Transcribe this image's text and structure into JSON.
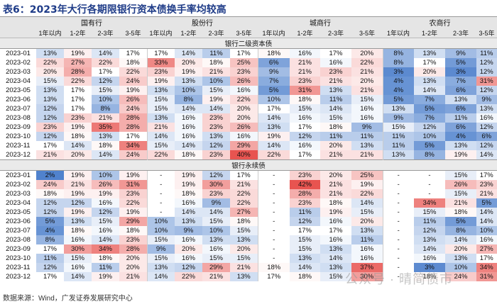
{
  "title": "表6：2023年大行各期限银行资本债换手率均较高",
  "groups": [
    "国有行",
    "股份行",
    "城商行",
    "农商行"
  ],
  "terms": [
    "1年以内",
    "1-2年",
    "2-3年",
    "3-5年"
  ],
  "sections": [
    {
      "label": "银行二级资本债",
      "rows": [
        {
          "date": "2023-01",
          "values": [
            "13%",
            "19%",
            "14%",
            "17%",
            "17%",
            "14%",
            "11%",
            "17%",
            "18%",
            "16%",
            "17%",
            "20%",
            "8%",
            "13%",
            "9%",
            "11%"
          ]
        },
        {
          "date": "2023-02",
          "values": [
            "22%",
            "27%",
            "22%",
            "18%",
            "33%",
            "20%",
            "18%",
            "25%",
            "6%",
            "21%",
            "16%",
            "22%",
            "8%",
            "17%",
            "5%",
            "12%"
          ]
        },
        {
          "date": "2023-03",
          "values": [
            "20%",
            "28%",
            "17%",
            "22%",
            "23%",
            "19%",
            "21%",
            "23%",
            "9%",
            "21%",
            "23%",
            "21%",
            "3%",
            "20%",
            "3%",
            "12%"
          ]
        },
        {
          "date": "2023-04",
          "values": [
            "15%",
            "22%",
            "12%",
            "24%",
            "19%",
            "13%",
            "10%",
            "26%",
            "7%",
            "23%",
            "21%",
            "20%",
            "4%",
            "13%",
            "7%",
            "31%"
          ]
        },
        {
          "date": "2023-05",
          "values": [
            "13%",
            "17%",
            "15%",
            "19%",
            "13%",
            "10%",
            "15%",
            "16%",
            "5%",
            "31%",
            "13%",
            "21%",
            "4%",
            "14%",
            "6%",
            "12%"
          ]
        },
        {
          "date": "2023-06",
          "values": [
            "13%",
            "17%",
            "10%",
            "26%",
            "15%",
            "8%",
            "19%",
            "22%",
            "10%",
            "18%",
            "11%",
            "15%",
            "5%",
            "7%",
            "13%",
            "9%"
          ]
        },
        {
          "date": "2023-07",
          "values": [
            "12%",
            "17%",
            "8%",
            "24%",
            "15%",
            "14%",
            "14%",
            "20%",
            "17%",
            "15%",
            "14%",
            "16%",
            "13%",
            "5%",
            "6%",
            "13%"
          ]
        },
        {
          "date": "2023-08",
          "values": [
            "12%",
            "23%",
            "21%",
            "28%",
            "13%",
            "16%",
            "23%",
            "20%",
            "14%",
            "16%",
            "15%",
            "16%",
            "9%",
            "7%",
            "11%",
            "16%"
          ]
        },
        {
          "date": "2023-09",
          "values": [
            "23%",
            "19%",
            "35%",
            "28%",
            "21%",
            "16%",
            "23%",
            "26%",
            "13%",
            "17%",
            "18%",
            "9%",
            "15%",
            "12%",
            "6%",
            "12%"
          ]
        },
        {
          "date": "2023-10",
          "values": [
            "12%",
            "18%",
            "13%",
            "17%",
            "14%",
            "16%",
            "13%",
            "16%",
            "19%",
            "12%",
            "11%",
            "11%",
            "11%",
            "10%",
            "4%",
            "6%"
          ]
        },
        {
          "date": "2023-11",
          "values": [
            "17%",
            "14%",
            "18%",
            "34%",
            "15%",
            "14%",
            "12%",
            "29%",
            "14%",
            "16%",
            "20%",
            "13%",
            "11%",
            "5%",
            "13%",
            "12%"
          ]
        },
        {
          "date": "2023-12",
          "values": [
            "21%",
            "20%",
            "14%",
            "24%",
            "22%",
            "18%",
            "23%",
            "40%",
            "22%",
            "17%",
            "21%",
            "21%",
            "13%",
            "8%",
            "19%",
            "14%"
          ]
        }
      ]
    },
    {
      "label": "银行永续债",
      "rows": [
        {
          "date": "2023-01",
          "values": [
            "2%",
            "19%",
            "10%",
            "19%",
            "-",
            "19%",
            "12%",
            "17%",
            "-",
            "23%",
            "20%",
            "25%",
            "-",
            "-",
            "15%",
            "17%"
          ]
        },
        {
          "date": "2023-02",
          "values": [
            "24%",
            "21%",
            "26%",
            "31%",
            "-",
            "19%",
            "30%",
            "21%",
            "-",
            "42%",
            "21%",
            "19%",
            "-",
            "-",
            "26%",
            "23%"
          ]
        },
        {
          "date": "2023-03",
          "values": [
            "18%",
            "19%",
            "19%",
            "23%",
            "-",
            "18%",
            "23%",
            "22%",
            "-",
            "28%",
            "21%",
            "22%",
            "-",
            "-",
            "15%",
            "21%"
          ]
        },
        {
          "date": "2023-04",
          "values": [
            "12%",
            "12%",
            "16%",
            "22%",
            "-",
            "16%",
            "9%",
            "22%",
            "-",
            "23%",
            "18%",
            "14%",
            "-",
            "34%",
            "21%",
            "5%"
          ]
        },
        {
          "date": "2023-05",
          "values": [
            "12%",
            "19%",
            "12%",
            "19%",
            "-",
            "14%",
            "14%",
            "27%",
            "-",
            "11%",
            "19%",
            "15%",
            "-",
            "15%",
            "18%",
            "14%"
          ]
        },
        {
          "date": "2023-06",
          "values": [
            "5%",
            "13%",
            "15%",
            "29%",
            "10%",
            "13%",
            "15%",
            "18%",
            "-",
            "12%",
            "16%",
            "20%",
            "-",
            "11%",
            "5%",
            "14%"
          ]
        },
        {
          "date": "2023-07",
          "values": [
            "4%",
            "18%",
            "16%",
            "18%",
            "10%",
            "9%",
            "10%",
            "15%",
            "-",
            "17%",
            "17%",
            "13%",
            "-",
            "12%",
            "8%",
            "10%"
          ]
        },
        {
          "date": "2023-08",
          "values": [
            "8%",
            "16%",
            "14%",
            "23%",
            "15%",
            "16%",
            "13%",
            "13%",
            "-",
            "15%",
            "16%",
            "11%",
            "-",
            "13%",
            "14%",
            "16%"
          ]
        },
        {
          "date": "2023-09",
          "values": [
            "17%",
            "30%",
            "34%",
            "28%",
            "9%",
            "20%",
            "16%",
            "20%",
            "-",
            "15%",
            "13%",
            "16%",
            "-",
            "14%",
            "20%",
            "27%"
          ]
        },
        {
          "date": "2023-10",
          "values": [
            "11%",
            "15%",
            "18%",
            "20%",
            "15%",
            "16%",
            "15%",
            "15%",
            "-",
            "13%",
            "14%",
            "16%",
            "-",
            "16%",
            "13%",
            "17%"
          ]
        },
        {
          "date": "2023-11",
          "values": [
            "12%",
            "16%",
            "11%",
            "20%",
            "13%",
            "12%",
            "29%",
            "21%",
            "18%",
            "14%",
            "13%",
            "37%",
            "-",
            "3%",
            "10%",
            "34%"
          ]
        },
        {
          "date": "2023-12",
          "values": [
            "17%",
            "14%",
            "19%",
            "21%",
            "14%",
            "22%",
            "21%",
            "13%",
            "17%",
            "18%",
            "15%",
            "30%",
            "-",
            "18%",
            "24%",
            "31%"
          ]
        }
      ]
    }
  ],
  "footer": "数据来源：Wind，广发证券发展研究中心",
  "watermark": "公众号 · 晴简债市"
}
